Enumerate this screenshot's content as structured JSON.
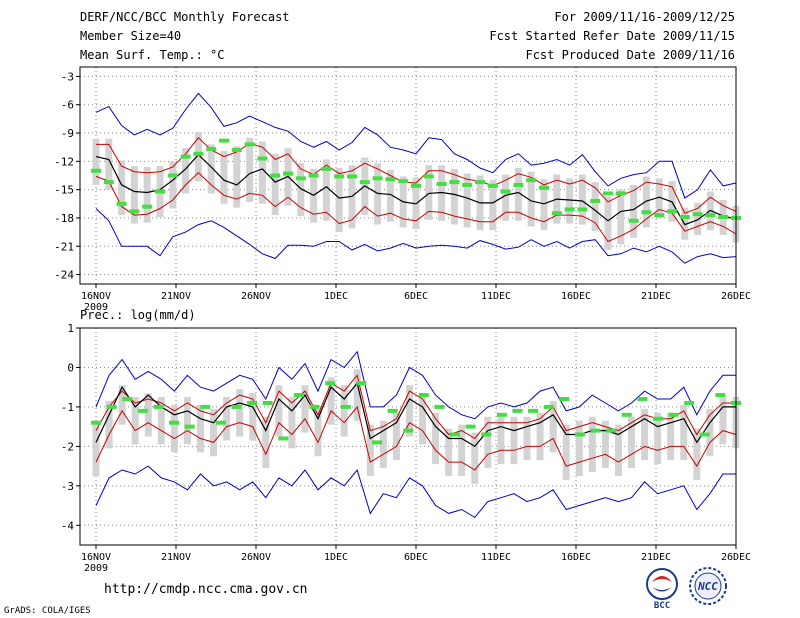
{
  "header": {
    "title": "DERF/NCC/BCC Monthly Forecast",
    "member_size": "Member Size=40",
    "variable": "Mean Surf. Temp.: °C",
    "period": "For 2009/11/16-2009/12/25",
    "refer_date": "Fcst Started Refer Date 2009/11/15",
    "produced_date": "Fcst Produced Date 2009/11/16"
  },
  "footer": {
    "url": "http://cmdp.ncc.cma.gov.cn",
    "grads": "GrADS: COLA/IGES",
    "logo_bcc": "BCC",
    "logo_ncc": "NCC"
  },
  "colors": {
    "mean": "#000000",
    "spread": "#cc0000",
    "extreme": "#0000cc",
    "box": "#d3d3d3",
    "obs": "#44dd44"
  },
  "chart_data": [
    {
      "type": "line",
      "title": "Mean Surf. Temp.: °C",
      "ylim": [
        -25,
        -2
      ],
      "yticks": [
        -3,
        -6,
        -9,
        -12,
        -15,
        -18,
        -21,
        -24
      ],
      "ytick_labels": [
        "-3",
        "-6",
        "-9",
        "-12",
        "-15",
        "-18",
        "-21",
        "-24"
      ],
      "xticks": [
        1,
        6,
        11,
        16,
        21,
        26,
        31,
        36,
        41
      ],
      "xtick_labels": [
        "16NOV",
        "21NOV",
        "26NOV",
        "1DEC",
        "6DEC",
        "11DEC",
        "16DEC",
        "21DEC",
        "26DEC"
      ],
      "year_label": "2009",
      "series": [
        {
          "name": "max",
          "color": "#0000cc",
          "values": [
            -6.8,
            -6.2,
            -8.2,
            -9.2,
            -8.6,
            -9.2,
            -8.5,
            -6.5,
            -4.8,
            -6.3,
            -8.3,
            -7.9,
            -7.2,
            -7.8,
            -8.4,
            -8.8,
            -9.9,
            -10.5,
            -9.9,
            -10.8,
            -10,
            -8.4,
            -9.2,
            -10.5,
            -10.8,
            -11.2,
            -9.5,
            -9.7,
            -11.2,
            -11.8,
            -12.7,
            -13.2,
            -11.8,
            -11.2,
            -12.4,
            -12.2,
            -11.8,
            -12.4,
            -11.3,
            -13.1,
            -14.6,
            -13.8,
            -13.4,
            -13.2,
            -12,
            -12,
            -15.9,
            -15,
            -12.9,
            -14.6,
            -14.3
          ]
        },
        {
          "name": "upper",
          "color": "#cc0000",
          "values": [
            -10.2,
            -10.2,
            -12.5,
            -13.1,
            -13.2,
            -13.1,
            -12.6,
            -11.2,
            -9.5,
            -10.8,
            -11.5,
            -11,
            -10.1,
            -10.5,
            -11.8,
            -11.2,
            -12.8,
            -13.4,
            -12.4,
            -13.3,
            -13,
            -12.2,
            -12.8,
            -13.5,
            -14.2,
            -14.3,
            -13,
            -13,
            -13.4,
            -13.9,
            -14.1,
            -14.6,
            -14,
            -13.3,
            -13.7,
            -14.5,
            -14,
            -14.4,
            -14,
            -14.8,
            -16.3,
            -15.6,
            -15.1,
            -14.2,
            -14.4,
            -14.7,
            -17.5,
            -17,
            -15.8,
            -16.7,
            -17.3
          ]
        },
        {
          "name": "mean",
          "color": "#000000",
          "values": [
            -11.5,
            -11.8,
            -14.5,
            -15.2,
            -15.3,
            -15,
            -14,
            -12.8,
            -11.3,
            -12.6,
            -14,
            -14.5,
            -13.3,
            -12.8,
            -14.2,
            -13.6,
            -14.9,
            -15.6,
            -14.7,
            -15.9,
            -15.7,
            -14.6,
            -15.4,
            -15.5,
            -16.3,
            -16.5,
            -15.4,
            -15.3,
            -15.5,
            -15.9,
            -16.4,
            -16.4,
            -15.6,
            -15.3,
            -16.2,
            -16.5,
            -16,
            -16.1,
            -16.2,
            -17.2,
            -18.3,
            -17.3,
            -17.1,
            -16.2,
            -15.8,
            -16.3,
            -18.7,
            -18.2,
            -17.2,
            -17.8,
            -18.1
          ]
        },
        {
          "name": "lower",
          "color": "#cc0000",
          "values": [
            -13.6,
            -14.1,
            -16.8,
            -17.7,
            -17.6,
            -17,
            -16.1,
            -14.5,
            -13.2,
            -14.5,
            -15.6,
            -16,
            -15.4,
            -15.6,
            -16.8,
            -15.8,
            -16.9,
            -17.6,
            -17.4,
            -18.6,
            -18.2,
            -16.8,
            -17.8,
            -17.5,
            -18.1,
            -18.3,
            -17.3,
            -17.4,
            -17.8,
            -18.1,
            -18.4,
            -18.4,
            -17.4,
            -17.4,
            -18,
            -18.4,
            -17.7,
            -17.7,
            -17.8,
            -18.5,
            -20.5,
            -19.9,
            -19.2,
            -18.1,
            -17.1,
            -17.5,
            -19.4,
            -18.9,
            -18.4,
            -18.9,
            -19.7
          ]
        },
        {
          "name": "min",
          "color": "#0000cc",
          "values": [
            -17,
            -18.3,
            -21,
            -21,
            -21,
            -22,
            -20,
            -19.5,
            -18.7,
            -18.3,
            -19,
            -19.9,
            -20.8,
            -21.8,
            -22.3,
            -20.9,
            -20.9,
            -21,
            -20.5,
            -20.5,
            -21.4,
            -20.8,
            -21.5,
            -21.2,
            -20.7,
            -21.2,
            -21,
            -20.9,
            -21,
            -21.2,
            -20.4,
            -20.8,
            -21.3,
            -21.1,
            -20.3,
            -21,
            -20.5,
            -21.2,
            -20.5,
            -20.3,
            -22,
            -21.8,
            -21.2,
            -21.6,
            -21,
            -21.6,
            -22.8,
            -22.1,
            -21.8,
            -22.2,
            -22.1
          ]
        }
      ],
      "obs": [
        -13,
        -14.2,
        -16.5,
        -17.3,
        -16.8,
        -15.2,
        -13.5,
        -11.5,
        -11.2,
        -10.7,
        -9.8,
        -10.8,
        -10.2,
        -11.7,
        -13.5,
        -13.3,
        -13.8,
        -13.5,
        -12.8,
        -13.6,
        -13.6,
        -14.2,
        -13.8,
        -13.9,
        -14.1,
        -14.6,
        -13.6,
        -14.4,
        -14.2,
        -14.5,
        -14.2,
        -14.6,
        -15.2,
        -14.5,
        -14,
        -14.8,
        -17.5,
        -17.1,
        -17.1,
        -16.2,
        -15.4,
        -15.4,
        -18.3,
        -17.4,
        -17.7,
        -17.3,
        -17.9,
        -17.6,
        -17.7,
        -17.9,
        -18
      ]
    },
    {
      "type": "line",
      "title": "Prec.: log(mm/d)",
      "ylim": [
        -4.5,
        1
      ],
      "yticks": [
        1,
        0,
        -1,
        -2,
        -3,
        -4
      ],
      "ytick_labels": [
        "1",
        "0",
        "-1",
        "-2",
        "-3",
        "-4"
      ],
      "xticks": [
        1,
        6,
        11,
        16,
        21,
        26,
        31,
        36,
        41
      ],
      "xtick_labels": [
        "16NOV",
        "21NOV",
        "26NOV",
        "1DEC",
        "6DEC",
        "11DEC",
        "16DEC",
        "21DEC",
        "26DEC"
      ],
      "year_label": "2009",
      "series": [
        {
          "name": "max",
          "color": "#0000cc",
          "values": [
            -1,
            -0.2,
            0.2,
            -0.3,
            -0.1,
            -0.3,
            -0.6,
            -0.2,
            -0.5,
            -0.6,
            -0.4,
            -0.2,
            -0.3,
            -0.8,
            0,
            -0.3,
            0.1,
            -0.6,
            0.2,
            0,
            0.4,
            -1,
            -1,
            -0.7,
            0,
            -0.2,
            -0.7,
            -1,
            -1.2,
            -1.3,
            -1,
            -0.9,
            -1,
            -0.9,
            -0.6,
            -0.5,
            -1.1,
            -1,
            -0.7,
            -0.9,
            -1.1,
            -0.9,
            -0.6,
            -0.8,
            -0.8,
            -0.5,
            -1.2,
            -0.6,
            -0.2,
            -0.2
          ]
        },
        {
          "name": "upper",
          "color": "#cc0000",
          "values": [
            -1.6,
            -1,
            -0.6,
            -0.9,
            -0.8,
            -0.9,
            -1.1,
            -0.9,
            -1.1,
            -1.2,
            -0.9,
            -0.7,
            -0.8,
            -1.4,
            -0.6,
            -0.9,
            -0.6,
            -1.2,
            -0.4,
            -0.6,
            -0.2,
            -1.6,
            -1.5,
            -1.3,
            -0.6,
            -0.8,
            -1.3,
            -1.7,
            -1.6,
            -1.8,
            -1.4,
            -1.4,
            -1.4,
            -1.4,
            -1.3,
            -1,
            -1.6,
            -1.5,
            -1.4,
            -1.5,
            -1.6,
            -1.4,
            -1.2,
            -1.3,
            -1.3,
            -1.1,
            -1.7,
            -1.2,
            -0.9,
            -0.9
          ]
        },
        {
          "name": "mean",
          "color": "#000000",
          "values": [
            -1.9,
            -1.2,
            -0.5,
            -1,
            -0.7,
            -1,
            -1.2,
            -1.1,
            -1.3,
            -1.4,
            -1,
            -0.9,
            -1,
            -1.6,
            -0.8,
            -1.1,
            -0.7,
            -1.3,
            -0.5,
            -0.8,
            -0.4,
            -1.8,
            -1.6,
            -1.4,
            -0.8,
            -1,
            -1.5,
            -1.8,
            -1.8,
            -2,
            -1.6,
            -1.5,
            -1.6,
            -1.5,
            -1.4,
            -1.2,
            -1.7,
            -1.7,
            -1.6,
            -1.6,
            -1.7,
            -1.5,
            -1.3,
            -1.5,
            -1.4,
            -1.3,
            -1.9,
            -1.4,
            -1,
            -1
          ]
        },
        {
          "name": "lower",
          "color": "#cc0000",
          "values": [
            -2.4,
            -1.7,
            -1.1,
            -1.6,
            -1.4,
            -1.6,
            -1.8,
            -1.6,
            -1.8,
            -1.9,
            -1.5,
            -1.4,
            -1.5,
            -2.2,
            -1.4,
            -1.7,
            -1.3,
            -1.9,
            -1.1,
            -1.4,
            -1,
            -2.4,
            -2.2,
            -2,
            -1.4,
            -1.6,
            -2.1,
            -2.4,
            -2.4,
            -2.6,
            -2.2,
            -2.1,
            -2.1,
            -2,
            -2,
            -1.8,
            -2.5,
            -2.4,
            -2.3,
            -2.2,
            -2.4,
            -2.2,
            -2,
            -2.1,
            -2,
            -2,
            -2.5,
            -1.9,
            -1.6,
            -1.7
          ]
        },
        {
          "name": "min",
          "color": "#0000cc",
          "values": [
            -3.5,
            -2.8,
            -2.6,
            -2.7,
            -2.5,
            -2.8,
            -2.9,
            -3.1,
            -2.7,
            -3,
            -2.9,
            -3.1,
            -2.9,
            -3.3,
            -2.8,
            -3,
            -2.6,
            -3.1,
            -2.8,
            -3,
            -2.6,
            -3.7,
            -3.2,
            -3.3,
            -2.8,
            -3,
            -3.5,
            -3.7,
            -3.6,
            -3.8,
            -3.4,
            -3.3,
            -3.2,
            -3.4,
            -3.3,
            -3.1,
            -3.6,
            -3.5,
            -3.4,
            -3.3,
            -3.4,
            -3.3,
            -2.9,
            -3.2,
            -3.1,
            -3,
            -3.6,
            -3.2,
            -2.7,
            -2.7
          ]
        }
      ],
      "obs": [
        -1.4,
        -1,
        -0.8,
        -1.1,
        -1,
        -1.4,
        -1.5,
        -1,
        -1.4,
        -1,
        -0.9,
        -0.9,
        -1.8,
        -0.7,
        -1,
        -0.4,
        -1,
        -0.4,
        -1.9,
        -1.1,
        -1.6,
        -0.7,
        -1,
        -1.7,
        -1.5,
        -1.7,
        -1.2,
        -1.1,
        -1.1,
        -1,
        -0.8,
        -1.7,
        -1.6,
        -1.6,
        -1.2,
        -0.8,
        -1.3,
        -1.2,
        -0.9,
        -1.7,
        -0.7,
        -0.9
      ]
    }
  ]
}
